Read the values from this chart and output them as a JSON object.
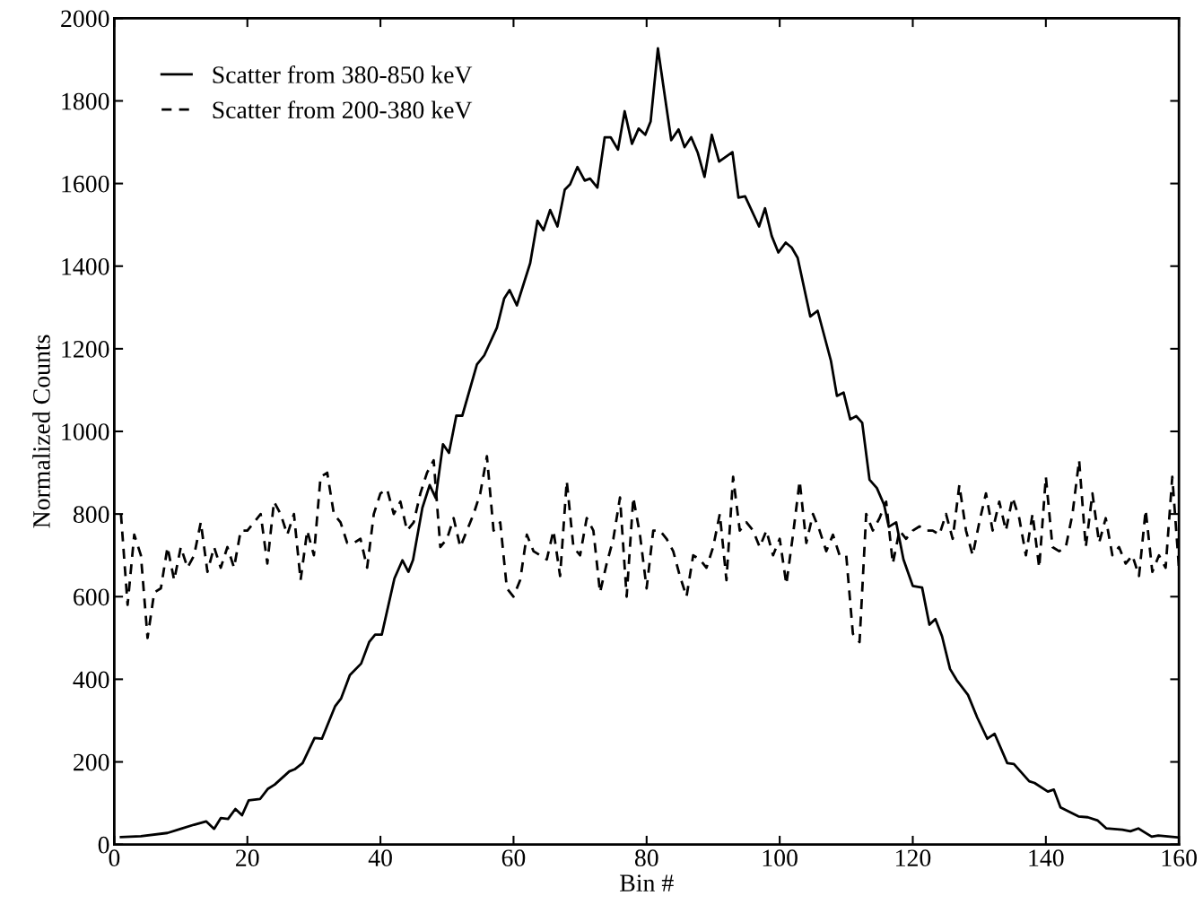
{
  "chart_data": {
    "type": "line",
    "xlabel": "Bin #",
    "ylabel": "Normalized Counts",
    "xlim": [
      0,
      160
    ],
    "ylim": [
      0,
      2000
    ],
    "xticks": [
      0,
      20,
      40,
      60,
      80,
      100,
      120,
      140,
      160
    ],
    "yticks": [
      0,
      200,
      400,
      600,
      800,
      1000,
      1200,
      1400,
      1600,
      1800,
      2000
    ],
    "grid": false,
    "legend": "top left",
    "marker": "none",
    "series": [
      {
        "name": "Scatter from 380-850 keV",
        "color": "#000000",
        "line_style": "solid",
        "x": [
          1,
          4,
          8,
          10,
          12,
          13.8,
          15,
          16,
          17.1,
          18.2,
          19.2,
          20.2,
          21.9,
          23.1,
          24.1,
          26.3,
          27.1,
          28.3,
          30.1,
          31.2,
          33.2,
          34.1,
          35.4,
          37.1,
          38.3,
          39.2,
          40.2,
          42.1,
          43.3,
          44.2,
          44.9,
          46.3,
          47.4,
          48.3,
          49.4,
          50.3,
          51.4,
          52.3,
          54.5,
          55.6,
          57.5,
          58.6,
          59.4,
          60.5,
          62.5,
          63.6,
          64.5,
          65.5,
          66.6,
          67.7,
          68.5,
          69.6,
          70.7,
          71.5,
          72.6,
          73.7,
          74.6,
          75.7,
          76.7,
          77.8,
          78.8,
          79.8,
          80.6,
          81.7,
          83.7,
          84.8,
          85.7,
          86.7,
          87.7,
          88.7,
          89.8,
          90.9,
          92.9,
          93.8,
          94.8,
          96.9,
          97.8,
          98.8,
          99.8,
          100.9,
          101.8,
          102.7,
          104.6,
          105.7,
          107.7,
          108.6,
          109.6,
          110.6,
          111.5,
          112.4,
          113.5,
          114.6,
          115.7,
          116.4,
          117.5,
          118.6,
          120,
          121.4,
          122.5,
          123.4,
          124.4,
          125.6,
          126.6,
          128.3,
          129.7,
          131.2,
          132.3,
          134.2,
          135.2,
          137.5,
          138.3,
          140.3,
          141.2,
          142.2,
          144.9,
          146.3,
          147.8,
          149.1,
          151.5,
          152.7,
          153.9,
          155.9,
          156.9,
          160
        ],
        "values": [
          18,
          20,
          28,
          38,
          48,
          56,
          38,
          64,
          62,
          86,
          71,
          107,
          110,
          135,
          145,
          177,
          182,
          197,
          258,
          256,
          335,
          354,
          410,
          438,
          490,
          508,
          508,
          644,
          688,
          660,
          689,
          815,
          870,
          839,
          969,
          948,
          1038,
          1038,
          1162,
          1184,
          1251,
          1322,
          1342,
          1305,
          1407,
          1510,
          1487,
          1536,
          1496,
          1585,
          1598,
          1640,
          1607,
          1612,
          1590,
          1712,
          1712,
          1682,
          1775,
          1696,
          1733,
          1718,
          1750,
          1927,
          1705,
          1731,
          1688,
          1712,
          1674,
          1616,
          1718,
          1653,
          1676,
          1566,
          1569,
          1496,
          1540,
          1473,
          1433,
          1457,
          1445,
          1420,
          1278,
          1292,
          1171,
          1086,
          1094,
          1029,
          1037,
          1021,
          883,
          863,
          822,
          769,
          780,
          690,
          626,
          622,
          532,
          546,
          504,
          425,
          398,
          362,
          307,
          256,
          268,
          197,
          195,
          153,
          149,
          128,
          133,
          90,
          68,
          66,
          58,
          39,
          36,
          32,
          39,
          19,
          22,
          17
        ]
      },
      {
        "name": "Scatter from 200-380 keV",
        "color": "#000000",
        "line_style": "dashed",
        "x": [
          1,
          2,
          3,
          4,
          5,
          6,
          7,
          8,
          9,
          10,
          11,
          12,
          13,
          14,
          15,
          16,
          17,
          18,
          19,
          20,
          21,
          22,
          23,
          24,
          25,
          26,
          27,
          28,
          29,
          30,
          31,
          32,
          33,
          34,
          35,
          36,
          37,
          38,
          39,
          40,
          41,
          42,
          43,
          44,
          45,
          46,
          47,
          48,
          49,
          50,
          51,
          52,
          53,
          54,
          55,
          56,
          57,
          58,
          59,
          60,
          61,
          62,
          63,
          64,
          65,
          66,
          67,
          68,
          69,
          70,
          71,
          72,
          73,
          74,
          75,
          76,
          77,
          78,
          79,
          80,
          81,
          82,
          83,
          84,
          85,
          86,
          87,
          88,
          89,
          90,
          91,
          92,
          93,
          94,
          95,
          96,
          97,
          98,
          99,
          100,
          101,
          102,
          103,
          104,
          105,
          106,
          107,
          108,
          109,
          110,
          111,
          112,
          113,
          114,
          115,
          116,
          117,
          118,
          119,
          120,
          121,
          122,
          123,
          124,
          125,
          126,
          127,
          128,
          129,
          130,
          131,
          132,
          133,
          134,
          135,
          136,
          137,
          138,
          139,
          140,
          141,
          142,
          143,
          144,
          145,
          146,
          147,
          148,
          149,
          150,
          151,
          152,
          153,
          154,
          155,
          156,
          157,
          158,
          159,
          160
        ],
        "values": [
          800,
          580,
          750,
          700,
          500,
          610,
          620,
          720,
          640,
          720,
          670,
          700,
          780,
          660,
          720,
          670,
          720,
          670,
          760,
          760,
          780,
          800,
          680,
          830,
          800,
          750,
          800,
          640,
          760,
          700,
          890,
          900,
          800,
          780,
          730,
          730,
          740,
          670,
          800,
          850,
          860,
          800,
          830,
          760,
          780,
          850,
          900,
          930,
          720,
          740,
          790,
          720,
          760,
          800,
          850,
          940,
          760,
          780,
          620,
          600,
          640,
          750,
          710,
          700,
          690,
          760,
          650,
          880,
          720,
          700,
          790,
          760,
          610,
          680,
          740,
          840,
          600,
          840,
          750,
          620,
          760,
          760,
          740,
          710,
          650,
          600,
          700,
          690,
          670,
          720,
          800,
          640,
          890,
          760,
          780,
          760,
          720,
          760,
          700,
          740,
          630,
          750,
          880,
          730,
          800,
          760,
          710,
          750,
          700,
          700,
          510,
          490,
          800,
          760,
          790,
          830,
          680,
          760,
          740,
          760,
          770,
          760,
          760,
          750,
          800,
          740,
          870,
          760,
          700,
          780,
          850,
          760,
          830,
          760,
          840,
          790,
          700,
          800,
          670,
          890,
          720,
          710,
          720,
          800,
          930,
          720,
          850,
          730,
          790,
          700,
          720,
          680,
          700,
          650,
          810,
          660,
          700,
          670,
          890,
          670
        ]
      }
    ]
  }
}
